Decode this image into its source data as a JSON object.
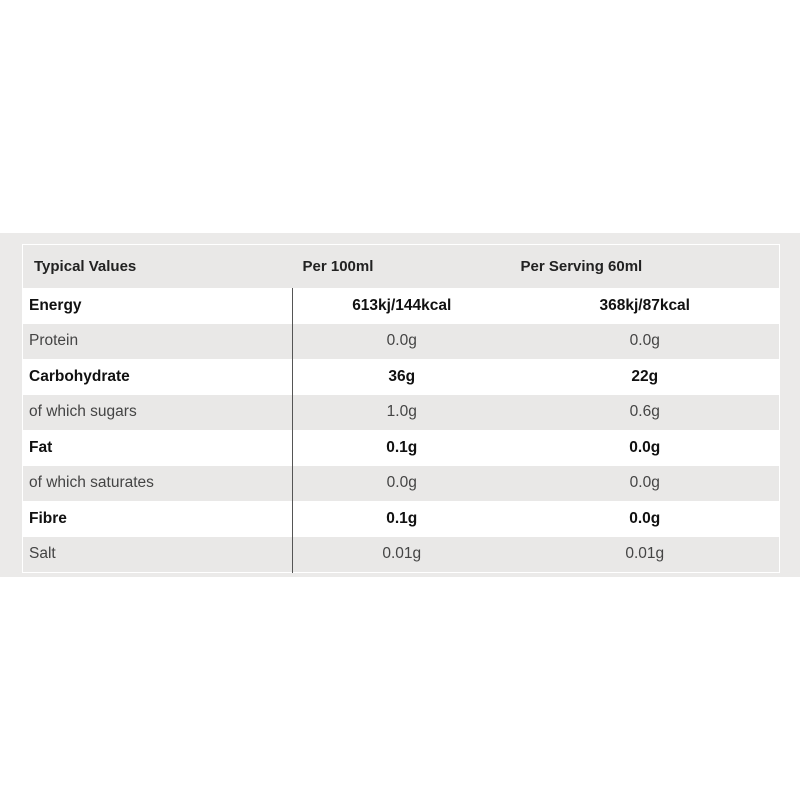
{
  "table": {
    "headers": [
      "Typical Values",
      "Per 100ml",
      "Per Serving 60ml"
    ],
    "rows": [
      {
        "label": "Energy",
        "per100": "613kj/144kcal",
        "serving": "368kj/87kcal",
        "bold": true
      },
      {
        "label": "Protein",
        "per100": "0.0g",
        "serving": "0.0g",
        "bold": false
      },
      {
        "label": "Carbohydrate",
        "per100": "36g",
        "serving": "22g",
        "bold": true
      },
      {
        "label": "of which sugars",
        "per100": "1.0g",
        "serving": "0.6g",
        "bold": false
      },
      {
        "label": "Fat",
        "per100": "0.1g",
        "serving": "0.0g",
        "bold": true
      },
      {
        "label": "of which saturates",
        "per100": "0.0g",
        "serving": "0.0g",
        "bold": false
      },
      {
        "label": "Fibre",
        "per100": "0.1g",
        "serving": "0.0g",
        "bold": true
      },
      {
        "label": "Salt",
        "per100": "0.01g",
        "serving": "0.01g",
        "bold": false
      }
    ]
  }
}
